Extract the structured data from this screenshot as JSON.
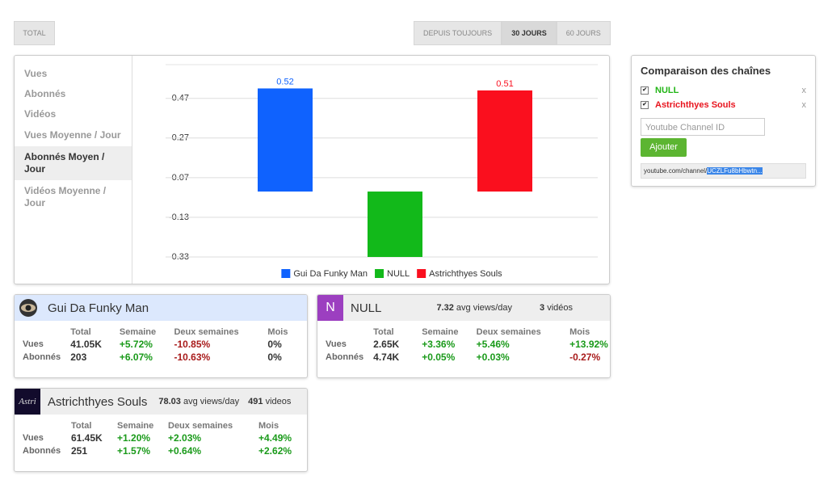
{
  "tabs": [
    "TOTAL"
  ],
  "ranges": {
    "items": [
      "DEPUIS TOUJOURS",
      "30 JOURS",
      "60 JOURS"
    ],
    "active": 1
  },
  "menu": {
    "items": [
      "Vues",
      "Abonnés",
      "Vidéos",
      "Vues Moyenne / Jour",
      "Abonnés Moyen / Jour",
      "Vidéos Moyenne / Jour"
    ],
    "active": 4
  },
  "chart_data": {
    "type": "bar",
    "categories": [
      null
    ],
    "series": [
      {
        "name": "Gui Da Funky Man",
        "color": "#0f62fe",
        "values": [
          0.52
        ],
        "value_labels": [
          "0.52"
        ]
      },
      {
        "name": "NULL",
        "color": "#12b91a",
        "values": [
          -0.33
        ]
      },
      {
        "name": "Astrichthyes Souls",
        "color": "#fa0f1e",
        "values": [
          0.51
        ],
        "value_labels": [
          "0.51"
        ]
      }
    ],
    "ylim": [
      -0.33,
      0.64
    ],
    "yticks": [
      0.47,
      0.27,
      0.07,
      -0.13,
      -0.33
    ],
    "grid": true,
    "legend": "bottom"
  },
  "compare": {
    "title": "Comparaison des chaînes",
    "channels": [
      {
        "name": "NULL",
        "color": "#22b516"
      },
      {
        "name": "Astrichthyes Souls",
        "color": "#e8141e"
      }
    ],
    "remove": "x",
    "placeholder": "Youtube Channel ID",
    "button": "Ajouter",
    "url": "youtube.com/channel/",
    "url_selected": "UCZLFu8bHbwtn..."
  },
  "cards": [
    {
      "name": "Gui Da Funky Man",
      "headers": [
        "Total",
        "Semaine",
        "Deux semaines",
        "Mois"
      ],
      "rows": [
        {
          "label": "Vues",
          "cells": [
            "41.05K",
            "+5.72%",
            "-10.85%",
            "0%"
          ]
        },
        {
          "label": "Abonnés",
          "cells": [
            "203",
            "+6.07%",
            "-10.63%",
            "0%"
          ]
        }
      ]
    },
    {
      "name": "NULL",
      "avg": "7.32",
      "avg_unit": "avg views/day",
      "videos": "3",
      "videos_unit": "vidéos",
      "headers": [
        "Total",
        "Semaine",
        "Deux semaines",
        "Mois"
      ],
      "rows": [
        {
          "label": "Vues",
          "cells": [
            "2.65K",
            "+3.36%",
            "+5.46%",
            "+13.92%"
          ]
        },
        {
          "label": "Abonnés",
          "cells": [
            "4.74K",
            "+0.05%",
            "+0.03%",
            "-0.27%"
          ]
        }
      ]
    },
    {
      "name": "Astrichthyes Souls",
      "avg": "78.03",
      "avg_unit": "avg views/day",
      "videos": "491",
      "videos_unit": "videos",
      "headers": [
        "Total",
        "Semaine",
        "Deux semaines",
        "Mois"
      ],
      "rows": [
        {
          "label": "Vues",
          "cells": [
            "61.45K",
            "+1.20%",
            "+2.03%",
            "+4.49%"
          ]
        },
        {
          "label": "Abonnés",
          "cells": [
            "251",
            "+1.57%",
            "+0.64%",
            "+2.62%"
          ]
        }
      ]
    }
  ]
}
